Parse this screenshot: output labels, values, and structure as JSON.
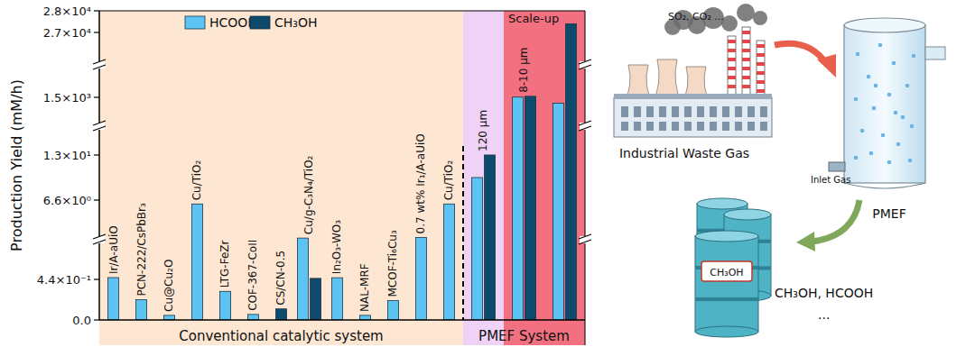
{
  "chart_data": {
    "type": "bar",
    "y_label": "Production Yield (mM/h)",
    "categories": [
      "Ir/A-aUiO",
      "PCN-222/CsPbBr₃",
      "Cu@Cu₂O",
      "Cu/TiO₂",
      "LTG-FeZr",
      "COF-367-CoII",
      "CS/CN-0.5",
      "Cu/g-C₃N₄/TiO₂",
      "In₂O₃-WO₃",
      "NAL-MRF",
      "MCOF-Ti₆Cu₃",
      "0.7 wt% Ir₁/A-aUiO",
      "Cu/TiO₂",
      "120 μm",
      "8-10 μm",
      null
    ],
    "series": [
      {
        "name": "HCOOH",
        "color": "#5cc3f3",
        "values": [
          0.58,
          0.22,
          0.05,
          6.3,
          0.31,
          0.06,
          null,
          3.65,
          0.57,
          0.05,
          0.21,
          3.7,
          6.3,
          9.8,
          1600,
          1350
        ]
      },
      {
        "name": "CH₃OH",
        "color": "#0e4a6b",
        "values": [
          null,
          null,
          null,
          null,
          null,
          null,
          0.12,
          0.52,
          null,
          null,
          null,
          null,
          null,
          13.8,
          1900,
          27400
        ]
      }
    ],
    "ylim": [
      0,
      28000
    ],
    "yticks": [
      {
        "value": 0,
        "label": "0.0"
      },
      {
        "value": 0.44,
        "label": "4.4×10⁻¹"
      },
      {
        "value": 6.6,
        "label": "6.6×10⁰"
      },
      {
        "value": 13,
        "label": "1.3×10¹"
      },
      {
        "value": 1500,
        "label": "1.5×10³"
      },
      {
        "value": 27000,
        "label": "2.7×10⁴"
      },
      {
        "value": 28000,
        "label": "2.8×10⁴"
      }
    ],
    "annotations": [
      "Conventional catalytic system",
      "PMEF System",
      "Scale-up"
    ],
    "legend": "top",
    "grid": false
  },
  "diagram": {
    "gas_label": "SO₂, CO₂ ...",
    "source_caption": "Industrial Waste Gas",
    "inlet_label": "Inlet Gas",
    "reactor_label": "PMEF",
    "drum_label": "CH₃OH",
    "products_label": "CH₃OH, HCOOH",
    "more_label": "..."
  }
}
